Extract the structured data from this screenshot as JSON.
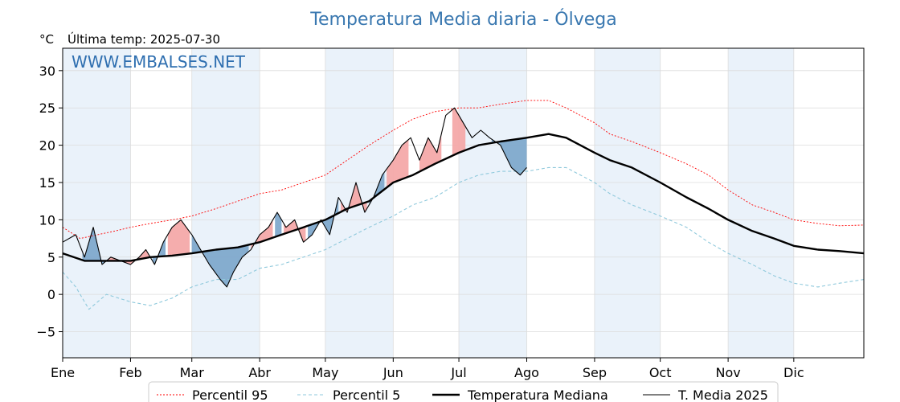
{
  "chart_data": {
    "type": "line",
    "title": "Temperatura Media diaria - Ólvega",
    "unit_label": "°C",
    "last_temp_label": "Última temp: 2025-07-30",
    "watermark": "WWW.EMBALSES.NET",
    "ylim": [
      -8.5,
      33
    ],
    "yticks": [
      -5,
      0,
      5,
      10,
      15,
      20,
      25,
      30
    ],
    "xlim": [
      0,
      366
    ],
    "months": [
      {
        "label": "Ene",
        "day": 0
      },
      {
        "label": "Feb",
        "day": 31
      },
      {
        "label": "Mar",
        "day": 59
      },
      {
        "label": "Abr",
        "day": 90
      },
      {
        "label": "May",
        "day": 120
      },
      {
        "label": "Jun",
        "day": 151
      },
      {
        "label": "Jul",
        "day": 181
      },
      {
        "label": "Ago",
        "day": 212
      },
      {
        "label": "Sep",
        "day": 243
      },
      {
        "label": "Oct",
        "day": 273
      },
      {
        "label": "Nov",
        "day": 304
      },
      {
        "label": "Dic",
        "day": 334
      }
    ],
    "grid": true,
    "legend_position": "bottom",
    "colors": {
      "p95": "#ff0000",
      "p5": "#8fc9dc",
      "median": "#000000",
      "year": "#000000",
      "above_fill": "#f4a9a9",
      "below_fill": "#7fa9cc",
      "shade": "#eaf2fa"
    },
    "series": [
      {
        "name": "Percentil 95",
        "key": "p95",
        "style": "dotted",
        "points": [
          [
            0,
            9
          ],
          [
            8,
            7.5
          ],
          [
            16,
            8
          ],
          [
            24,
            8.5
          ],
          [
            31,
            9
          ],
          [
            40,
            9.5
          ],
          [
            50,
            10
          ],
          [
            59,
            10.5
          ],
          [
            70,
            11.5
          ],
          [
            80,
            12.5
          ],
          [
            90,
            13.5
          ],
          [
            100,
            14
          ],
          [
            110,
            15
          ],
          [
            120,
            16
          ],
          [
            130,
            18
          ],
          [
            140,
            20
          ],
          [
            151,
            22
          ],
          [
            160,
            23.5
          ],
          [
            170,
            24.5
          ],
          [
            181,
            25
          ],
          [
            190,
            25
          ],
          [
            200,
            25.5
          ],
          [
            212,
            26
          ],
          [
            222,
            26
          ],
          [
            230,
            25
          ],
          [
            243,
            23
          ],
          [
            250,
            21.5
          ],
          [
            260,
            20.5
          ],
          [
            273,
            19
          ],
          [
            285,
            17.5
          ],
          [
            295,
            16
          ],
          [
            304,
            14
          ],
          [
            315,
            12
          ],
          [
            325,
            11
          ],
          [
            334,
            10
          ],
          [
            345,
            9.5
          ],
          [
            355,
            9.2
          ],
          [
            366,
            9.3
          ]
        ]
      },
      {
        "name": "Percentil 5",
        "key": "p5",
        "style": "dashed",
        "points": [
          [
            0,
            3
          ],
          [
            6,
            1
          ],
          [
            12,
            -2
          ],
          [
            20,
            0
          ],
          [
            31,
            -1
          ],
          [
            40,
            -1.5
          ],
          [
            50,
            -0.5
          ],
          [
            59,
            1
          ],
          [
            70,
            2
          ],
          [
            80,
            2
          ],
          [
            90,
            3.5
          ],
          [
            100,
            4
          ],
          [
            110,
            5
          ],
          [
            120,
            6
          ],
          [
            130,
            7.5
          ],
          [
            140,
            9
          ],
          [
            151,
            10.5
          ],
          [
            160,
            12
          ],
          [
            170,
            13
          ],
          [
            181,
            15
          ],
          [
            190,
            16
          ],
          [
            200,
            16.5
          ],
          [
            212,
            16.5
          ],
          [
            222,
            17
          ],
          [
            230,
            17
          ],
          [
            243,
            15
          ],
          [
            250,
            13.5
          ],
          [
            260,
            12
          ],
          [
            273,
            10.5
          ],
          [
            285,
            9
          ],
          [
            295,
            7
          ],
          [
            304,
            5.5
          ],
          [
            315,
            4
          ],
          [
            325,
            2.5
          ],
          [
            334,
            1.5
          ],
          [
            345,
            1
          ],
          [
            355,
            1.5
          ],
          [
            366,
            2
          ]
        ]
      },
      {
        "name": "Temperatura Mediana",
        "key": "median",
        "style": "solid-bold",
        "points": [
          [
            0,
            5.5
          ],
          [
            10,
            4.5
          ],
          [
            20,
            4.5
          ],
          [
            31,
            4.5
          ],
          [
            40,
            5
          ],
          [
            50,
            5.2
          ],
          [
            59,
            5.5
          ],
          [
            70,
            6
          ],
          [
            80,
            6.3
          ],
          [
            90,
            7
          ],
          [
            100,
            8
          ],
          [
            110,
            9
          ],
          [
            120,
            10
          ],
          [
            130,
            11.5
          ],
          [
            140,
            12.5
          ],
          [
            151,
            15
          ],
          [
            160,
            16
          ],
          [
            170,
            17.5
          ],
          [
            181,
            19
          ],
          [
            190,
            20
          ],
          [
            200,
            20.5
          ],
          [
            212,
            21
          ],
          [
            222,
            21.5
          ],
          [
            230,
            21
          ],
          [
            243,
            19
          ],
          [
            250,
            18
          ],
          [
            260,
            17
          ],
          [
            273,
            15
          ],
          [
            285,
            13
          ],
          [
            295,
            11.5
          ],
          [
            304,
            10
          ],
          [
            315,
            8.5
          ],
          [
            325,
            7.5
          ],
          [
            334,
            6.5
          ],
          [
            345,
            6
          ],
          [
            355,
            5.8
          ],
          [
            366,
            5.5
          ]
        ]
      },
      {
        "name": "T. Media 2025",
        "key": "year",
        "style": "solid-thin",
        "points": [
          [
            0,
            7
          ],
          [
            6,
            8
          ],
          [
            10,
            5
          ],
          [
            14,
            9
          ],
          [
            18,
            4
          ],
          [
            22,
            5
          ],
          [
            31,
            4
          ],
          [
            35,
            5
          ],
          [
            38,
            6
          ],
          [
            42,
            4
          ],
          [
            46,
            7
          ],
          [
            50,
            9
          ],
          [
            54,
            10
          ],
          [
            59,
            8
          ],
          [
            63,
            6
          ],
          [
            67,
            4
          ],
          [
            72,
            2
          ],
          [
            75,
            1
          ],
          [
            78,
            3
          ],
          [
            82,
            5
          ],
          [
            86,
            6
          ],
          [
            90,
            8
          ],
          [
            94,
            9
          ],
          [
            98,
            11
          ],
          [
            102,
            9
          ],
          [
            106,
            10
          ],
          [
            110,
            7
          ],
          [
            114,
            8
          ],
          [
            118,
            10
          ],
          [
            122,
            8
          ],
          [
            126,
            13
          ],
          [
            130,
            11
          ],
          [
            134,
            15
          ],
          [
            138,
            11
          ],
          [
            142,
            13
          ],
          [
            146,
            16
          ],
          [
            151,
            18
          ],
          [
            155,
            20
          ],
          [
            159,
            21
          ],
          [
            163,
            18
          ],
          [
            167,
            21
          ],
          [
            171,
            19
          ],
          [
            175,
            24
          ],
          [
            179,
            25
          ],
          [
            183,
            23
          ],
          [
            187,
            21
          ],
          [
            191,
            22
          ],
          [
            195,
            21
          ],
          [
            200,
            20
          ],
          [
            205,
            17
          ],
          [
            209,
            16
          ],
          [
            212,
            17
          ]
        ]
      }
    ],
    "fill_above": [
      [
        21,
        40
      ],
      [
        48,
        58
      ],
      [
        86,
        96
      ],
      [
        101,
        111
      ],
      [
        127,
        139
      ],
      [
        148,
        158
      ],
      [
        163,
        173
      ],
      [
        178,
        184
      ]
    ],
    "fill_below": [
      [
        9,
        20
      ],
      [
        41,
        47
      ],
      [
        59,
        85
      ],
      [
        97,
        100
      ],
      [
        112,
        126
      ],
      [
        140,
        147
      ],
      [
        196,
        212
      ]
    ]
  }
}
